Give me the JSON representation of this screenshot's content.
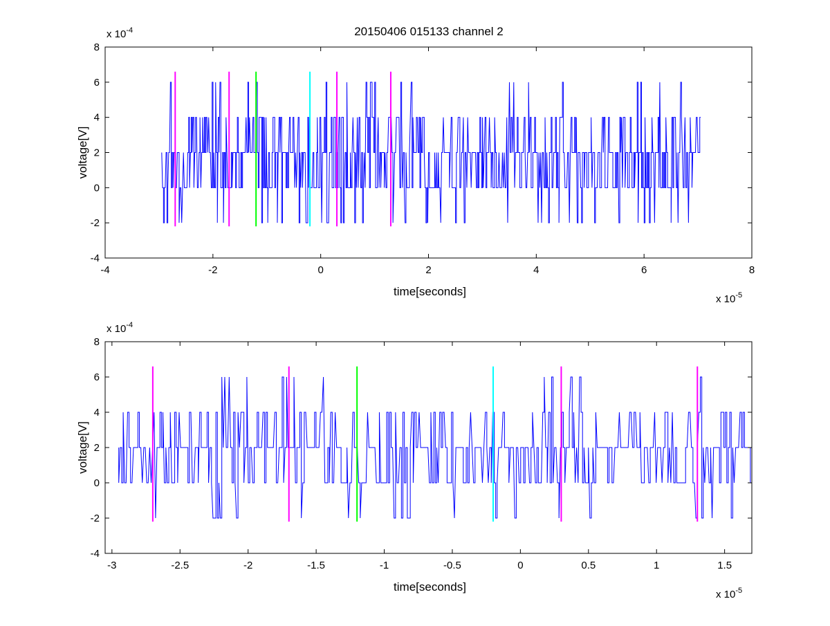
{
  "figure": {
    "title": "20150406 015133 channel 2"
  },
  "chart_data": [
    {
      "type": "line",
      "xlabel": "time[seconds]",
      "ylabel": "voltage[V]",
      "x_multiplier": "x 10",
      "x_exponent": "-5",
      "y_multiplier": "x 10",
      "y_exponent": "-4",
      "xlim": [
        -4,
        8
      ],
      "ylim": [
        -4,
        8
      ],
      "xticks": [
        -4,
        -2,
        0,
        2,
        4,
        6,
        8
      ],
      "xtick_labels": [
        "-4",
        "-2",
        "0",
        "2",
        "4",
        "6",
        "8"
      ],
      "yticks": [
        -4,
        -2,
        0,
        2,
        4,
        6,
        8
      ],
      "ytick_labels": [
        "-4",
        "-2",
        "0",
        "2",
        "4",
        "6",
        "8"
      ],
      "grid": false,
      "signal": {
        "name": "",
        "color": "#0000ff",
        "x_start": -2.95,
        "x_end": 7.05,
        "levels": [
          -2,
          0,
          2,
          4,
          6
        ],
        "baseline": 2,
        "value_range": [
          -2,
          6
        ]
      },
      "markers": [
        {
          "x": -2.7,
          "color": "#ff00ff",
          "y_range": [
            -2.2,
            6.6
          ]
        },
        {
          "x": -1.7,
          "color": "#ff00ff",
          "y_range": [
            -2.2,
            6.6
          ]
        },
        {
          "x": -1.2,
          "color": "#00ff00",
          "y_range": [
            -2.2,
            6.6
          ]
        },
        {
          "x": -0.2,
          "color": "#00ffff",
          "y_range": [
            -2.2,
            6.6
          ]
        },
        {
          "x": 0.3,
          "color": "#ff00ff",
          "y_range": [
            -2.2,
            6.6
          ]
        },
        {
          "x": 1.3,
          "color": "#ff00ff",
          "y_range": [
            -2.2,
            6.6
          ]
        }
      ]
    },
    {
      "type": "line",
      "xlabel": "time[seconds]",
      "ylabel": "voltage[V]",
      "x_multiplier": "x 10",
      "x_exponent": "-5",
      "y_multiplier": "x 10",
      "y_exponent": "-4",
      "xlim": [
        -3.05,
        1.7
      ],
      "ylim": [
        -4,
        8
      ],
      "xticks": [
        -3,
        -2.5,
        -2,
        -1.5,
        -1,
        -0.5,
        0,
        0.5,
        1,
        1.5
      ],
      "xtick_labels": [
        "-3",
        "-2.5",
        "-2",
        "-1.5",
        "-1",
        "-0.5",
        "0",
        "0.5",
        "1",
        "1.5"
      ],
      "yticks": [
        -4,
        -2,
        0,
        2,
        4,
        6,
        8
      ],
      "ytick_labels": [
        "-4",
        "-2",
        "0",
        "2",
        "4",
        "6",
        "8"
      ],
      "grid": false,
      "signal": {
        "name": "",
        "color": "#0000ff",
        "x_start": -2.95,
        "x_end": 1.7,
        "levels": [
          -2,
          0,
          2,
          4,
          6
        ],
        "baseline": 2,
        "value_range": [
          -2,
          6
        ]
      },
      "markers": [
        {
          "x": -2.7,
          "color": "#ff00ff",
          "y_range": [
            -2.2,
            6.6
          ]
        },
        {
          "x": -1.7,
          "color": "#ff00ff",
          "y_range": [
            -2.2,
            6.6
          ]
        },
        {
          "x": -1.2,
          "color": "#00ff00",
          "y_range": [
            -2.2,
            6.6
          ]
        },
        {
          "x": -0.2,
          "color": "#00ffff",
          "y_range": [
            -2.2,
            6.6
          ]
        },
        {
          "x": 0.3,
          "color": "#ff00ff",
          "y_range": [
            -2.2,
            6.6
          ]
        },
        {
          "x": 1.3,
          "color": "#ff00ff",
          "y_range": [
            -2.2,
            6.6
          ]
        }
      ]
    }
  ]
}
